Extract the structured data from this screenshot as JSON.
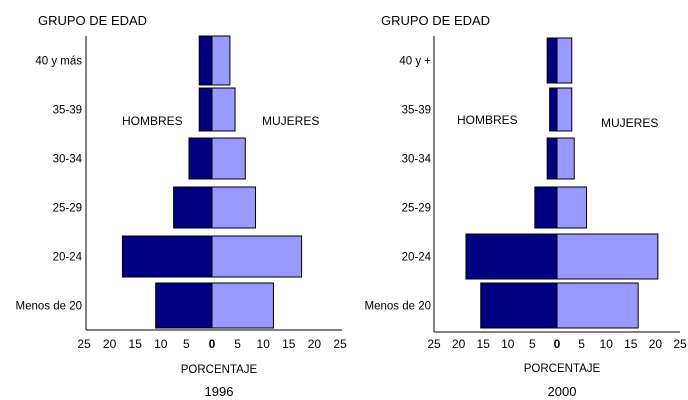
{
  "chart_data": [
    {
      "type": "bar",
      "orientation": "horizontal-population-pyramid",
      "group_axis_title": "GRUPO DE EDAD",
      "categories": [
        "40 y más",
        "35-39",
        "30-34",
        "25-29",
        "20-24",
        "Menos de 20"
      ],
      "series": [
        {
          "name": "HOMBRES",
          "side": "left",
          "color": "#000080",
          "values": [
            2.5,
            2.5,
            4.5,
            7.5,
            17.5,
            11
          ]
        },
        {
          "name": "MUJERES",
          "side": "right",
          "color": "#9999ff",
          "values": [
            3.5,
            4.5,
            6.5,
            8.5,
            17.5,
            12
          ]
        }
      ],
      "x_ticks": [
        "25",
        "20",
        "15",
        "10",
        "5",
        "0",
        "5",
        "10",
        "15",
        "20",
        "25"
      ],
      "xlabel": "PORCENTAJE",
      "caption": "1996",
      "xlim": [
        -25,
        25
      ]
    },
    {
      "type": "bar",
      "orientation": "horizontal-population-pyramid",
      "group_axis_title": "GRUPO DE EDAD",
      "categories": [
        "40 y +",
        "35-39",
        "30-34",
        "25-29",
        "20-24",
        "Menos de 20"
      ],
      "series": [
        {
          "name": "HOMBRES",
          "side": "left",
          "color": "#000080",
          "values": [
            2,
            1.5,
            2,
            4.5,
            18.5,
            15.5
          ]
        },
        {
          "name": "MUJERES",
          "side": "right",
          "color": "#9999ff",
          "values": [
            3,
            3,
            3.5,
            6,
            20.5,
            16.5
          ]
        }
      ],
      "x_ticks": [
        "25",
        "20",
        "15",
        "10",
        "5",
        "0",
        "5",
        "10",
        "15",
        "20",
        "25"
      ],
      "xlabel": "PORCENTAJE",
      "caption": "2000",
      "xlim": [
        -25,
        25
      ]
    }
  ]
}
